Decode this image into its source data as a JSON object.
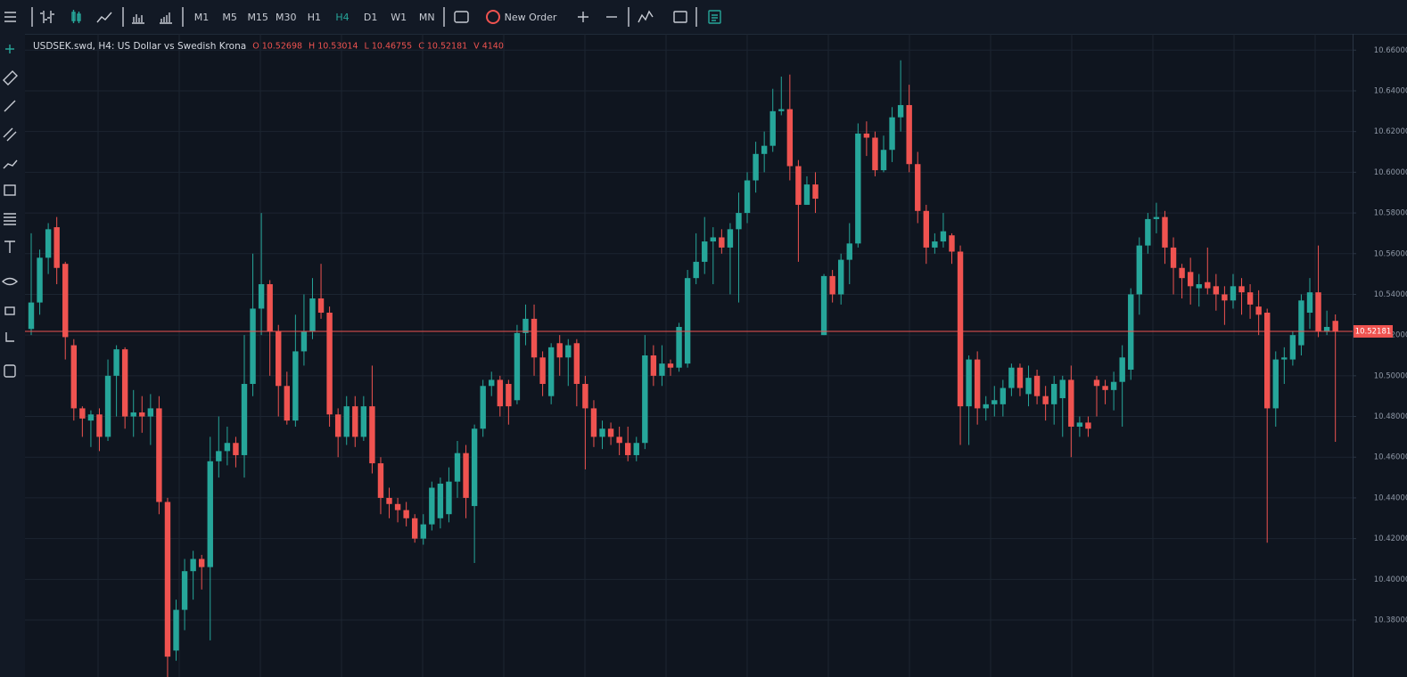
{
  "toolbar": {
    "timeframes": [
      "M1",
      "M5",
      "M15",
      "M30",
      "H1",
      "H4",
      "D1",
      "W1",
      "MN"
    ],
    "active_timeframe": "H4",
    "new_order": "New Order"
  },
  "chart_data": {
    "type": "candlestick",
    "title": "USDSEK.swd, H4: US Dollar vs Swedish Krona",
    "ohlc_text": [
      "O 10.52698",
      "H 10.53014",
      "L 10.46755",
      "C 10.52181",
      "V 4140"
    ],
    "up_color": "#26a69a",
    "down_color": "#ef5350",
    "grid": true,
    "ylim": [
      10.352,
      10.668
    ],
    "yticks": [
      {
        "value": 10.66,
        "label": "10.66000"
      },
      {
        "value": 10.64,
        "label": "10.64000"
      },
      {
        "value": 10.62,
        "label": "10.62000"
      },
      {
        "value": 10.6,
        "label": "10.60000"
      },
      {
        "value": 10.58,
        "label": "10.58000"
      },
      {
        "value": 10.56,
        "label": "10.56000"
      },
      {
        "value": 10.54,
        "label": "10.54000"
      },
      {
        "value": 10.52,
        "label": "10.52000"
      },
      {
        "value": 10.5,
        "label": "10.50000"
      },
      {
        "value": 10.48,
        "label": "10.48000"
      },
      {
        "value": 10.46,
        "label": "10.46000"
      },
      {
        "value": 10.44,
        "label": "10.44000"
      },
      {
        "value": 10.42,
        "label": "10.42000"
      },
      {
        "value": 10.4,
        "label": "10.40000"
      },
      {
        "value": 10.38,
        "label": "10.38000"
      }
    ],
    "last_price": {
      "value": 10.52181,
      "label": "10.52181"
    },
    "open": [
      10.523,
      10.536,
      10.558,
      10.573,
      10.555,
      10.515,
      10.484,
      10.478,
      10.481,
      10.47,
      10.5,
      10.513,
      10.48,
      10.482,
      10.48,
      10.484,
      10.438,
      10.365,
      10.385,
      10.404,
      10.41,
      10.406,
      10.458,
      10.463,
      10.467,
      10.461,
      10.496,
      10.533,
      10.545,
      10.522,
      10.495,
      10.478,
      10.512,
      10.522,
      10.538,
      10.531,
      10.481,
      10.47,
      10.485,
      10.47,
      10.485,
      10.457,
      10.44,
      10.437,
      10.434,
      10.43,
      10.42,
      10.427,
      10.43,
      10.432,
      10.448,
      10.462,
      10.436,
      10.474,
      10.495,
      10.498,
      10.496,
      10.488,
      10.521,
      10.528,
      10.509,
      10.49,
      10.516,
      10.509,
      10.516,
      10.496,
      10.484,
      10.47,
      10.474,
      10.47,
      10.467,
      10.461,
      10.467,
      10.51,
      10.5,
      10.506,
      10.504,
      10.506,
      10.548,
      10.556,
      10.566,
      10.568,
      10.563,
      10.572,
      10.58,
      10.596,
      10.609,
      10.613,
      10.63,
      10.631,
      10.603,
      10.584,
      10.594,
      10.52,
      10.549,
      10.54,
      10.557,
      10.565,
      10.619,
      10.617,
      10.601,
      10.611,
      10.627,
      10.633,
      10.604,
      10.581,
      10.563,
      10.566,
      10.569,
      10.561,
      10.485,
      10.508,
      10.484,
      10.486,
      10.486,
      10.494,
      10.504,
      10.491,
      10.5,
      10.49,
      10.486,
      10.489,
      10.498,
      10.475,
      10.477,
      10.498,
      10.495,
      10.493,
      10.497,
      10.503,
      10.54,
      10.564,
      10.577,
      10.578,
      10.563,
      10.553,
      10.551,
      10.543,
      10.546,
      10.544,
      10.54,
      10.537,
      10.544,
      10.541,
      10.534,
      10.531,
      10.484,
      10.508,
      10.508,
      10.515,
      10.531,
      10.541,
      10.522,
      10.52698
    ],
    "high": [
      10.57,
      10.562,
      10.575,
      10.578,
      10.556,
      10.518,
      10.485,
      10.483,
      10.484,
      10.508,
      10.515,
      10.514,
      10.493,
      10.49,
      10.491,
      10.49,
      10.44,
      10.39,
      10.41,
      10.414,
      10.412,
      10.47,
      10.48,
      10.475,
      10.47,
      10.52,
      10.56,
      10.58,
      10.547,
      10.525,
      10.502,
      10.53,
      10.54,
      10.548,
      10.555,
      10.534,
      10.484,
      10.49,
      10.49,
      10.49,
      10.505,
      10.46,
      10.445,
      10.44,
      10.438,
      10.432,
      10.432,
      10.448,
      10.45,
      10.455,
      10.468,
      10.466,
      10.476,
      10.498,
      10.502,
      10.5,
      10.498,
      10.525,
      10.535,
      10.535,
      10.512,
      10.516,
      10.52,
      10.518,
      10.518,
      10.5,
      10.488,
      10.478,
      10.477,
      10.475,
      10.475,
      10.47,
      10.52,
      10.515,
      10.515,
      10.508,
      10.526,
      10.552,
      10.57,
      10.578,
      10.573,
      10.572,
      10.575,
      10.59,
      10.6,
      10.615,
      10.62,
      10.641,
      10.647,
      10.648,
      10.606,
      10.598,
      10.6,
      10.55,
      10.552,
      10.56,
      10.575,
      10.624,
      10.625,
      10.62,
      10.618,
      10.632,
      10.655,
      10.643,
      10.61,
      10.584,
      10.57,
      10.58,
      10.57,
      10.564,
      10.51,
      10.512,
      10.49,
      10.495,
      10.498,
      10.506,
      10.506,
      10.505,
      10.503,
      10.495,
      10.5,
      10.5,
      10.505,
      10.48,
      10.48,
      10.5,
      10.498,
      10.502,
      10.515,
      10.543,
      10.568,
      10.58,
      10.585,
      10.581,
      10.568,
      10.555,
      10.558,
      10.55,
      10.563,
      10.55,
      10.544,
      10.55,
      10.548,
      10.545,
      10.542,
      10.533,
      10.512,
      10.514,
      10.522,
      10.54,
      10.548,
      10.564,
      10.532,
      10.53014
    ],
    "low": [
      10.52,
      10.53,
      10.55,
      10.545,
      10.508,
      10.478,
      10.47,
      10.465,
      10.463,
      10.468,
      10.48,
      10.474,
      10.47,
      10.472,
      10.466,
      10.432,
      10.352,
      10.36,
      10.375,
      10.39,
      10.395,
      10.37,
      10.45,
      10.456,
      10.455,
      10.45,
      10.49,
      10.52,
      10.5,
      10.48,
      10.476,
      10.475,
      10.505,
      10.518,
      10.528,
      10.475,
      10.46,
      10.466,
      10.465,
      10.468,
      10.452,
      10.432,
      10.43,
      10.428,
      10.426,
      10.418,
      10.417,
      10.424,
      10.425,
      10.428,
      10.44,
      10.43,
      10.408,
      10.47,
      10.49,
      10.48,
      10.476,
      10.486,
      10.515,
      10.5,
      10.49,
      10.486,
      10.5,
      10.495,
      10.485,
      10.454,
      10.465,
      10.464,
      10.466,
      10.461,
      10.458,
      10.458,
      10.464,
      10.495,
      10.495,
      10.5,
      10.502,
      10.504,
      10.545,
      10.55,
      10.545,
      10.56,
      10.54,
      10.536,
      10.575,
      10.59,
      10.6,
      10.61,
      10.628,
      10.596,
      10.556,
      10.584,
      10.58,
      10.52,
      10.536,
      10.535,
      10.545,
      10.563,
      10.608,
      10.598,
      10.6,
      10.605,
      10.62,
      10.6,
      10.575,
      10.555,
      10.56,
      10.563,
      10.555,
      10.466,
      10.466,
      10.476,
      10.478,
      10.48,
      10.48,
      10.49,
      10.49,
      10.485,
      10.486,
      10.478,
      10.476,
      10.47,
      10.46,
      10.47,
      10.47,
      10.48,
      10.486,
      10.483,
      10.475,
      10.498,
      10.53,
      10.56,
      10.57,
      10.555,
      10.54,
      10.538,
      10.535,
      10.534,
      10.54,
      10.532,
      10.525,
      10.533,
      10.53,
      10.528,
      10.52,
      10.418,
      10.475,
      10.496,
      10.505,
      10.51,
      10.523,
      10.519,
      10.52,
      10.46755
    ],
    "close": [
      10.536,
      10.558,
      10.572,
      10.553,
      10.519,
      10.484,
      10.479,
      10.481,
      10.47,
      10.5,
      10.513,
      10.48,
      10.482,
      10.48,
      10.484,
      10.438,
      10.362,
      10.385,
      10.404,
      10.41,
      10.406,
      10.458,
      10.463,
      10.467,
      10.461,
      10.496,
      10.533,
      10.545,
      10.522,
      10.495,
      10.478,
      10.512,
      10.522,
      10.538,
      10.531,
      10.481,
      10.47,
      10.485,
      10.47,
      10.485,
      10.457,
      10.44,
      10.437,
      10.434,
      10.43,
      10.42,
      10.427,
      10.445,
      10.447,
      10.448,
      10.462,
      10.44,
      10.474,
      10.495,
      10.498,
      10.485,
      10.485,
      10.521,
      10.528,
      10.509,
      10.496,
      10.514,
      10.509,
      10.515,
      10.496,
      10.484,
      10.47,
      10.474,
      10.47,
      10.467,
      10.461,
      10.467,
      10.51,
      10.5,
      10.506,
      10.504,
      10.524,
      10.548,
      10.556,
      10.566,
      10.568,
      10.563,
      10.572,
      10.58,
      10.596,
      10.609,
      10.613,
      10.63,
      10.631,
      10.603,
      10.584,
      10.594,
      10.587,
      10.549,
      10.54,
      10.557,
      10.565,
      10.619,
      10.617,
      10.601,
      10.611,
      10.627,
      10.633,
      10.604,
      10.581,
      10.563,
      10.566,
      10.571,
      10.561,
      10.485,
      10.508,
      10.484,
      10.486,
      10.488,
      10.494,
      10.504,
      10.494,
      10.499,
      10.49,
      10.486,
      10.496,
      10.498,
      10.475,
      10.477,
      10.474,
      10.495,
      10.493,
      10.497,
      10.509,
      10.54,
      10.564,
      10.577,
      10.578,
      10.563,
      10.553,
      10.548,
      10.544,
      10.545,
      10.543,
      10.54,
      10.537,
      10.544,
      10.541,
      10.535,
      10.53,
      10.484,
      10.508,
      10.509,
      10.52,
      10.537,
      10.541,
      10.522,
      10.524,
      10.52181
    ]
  }
}
